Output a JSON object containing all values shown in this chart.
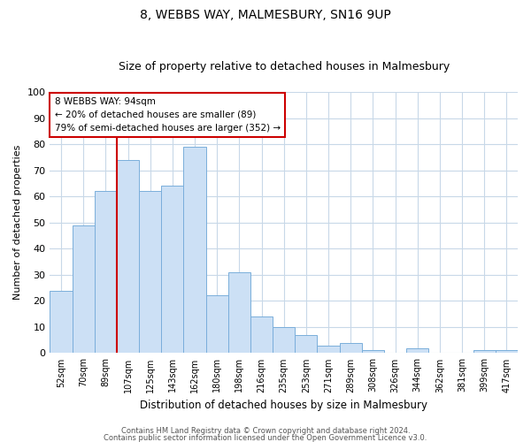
{
  "title": "8, WEBBS WAY, MALMESBURY, SN16 9UP",
  "subtitle": "Size of property relative to detached houses in Malmesbury",
  "xlabel": "Distribution of detached houses by size in Malmesbury",
  "ylabel": "Number of detached properties",
  "categories": [
    "52sqm",
    "70sqm",
    "89sqm",
    "107sqm",
    "125sqm",
    "143sqm",
    "162sqm",
    "180sqm",
    "198sqm",
    "216sqm",
    "235sqm",
    "253sqm",
    "271sqm",
    "289sqm",
    "308sqm",
    "326sqm",
    "344sqm",
    "362sqm",
    "381sqm",
    "399sqm",
    "417sqm"
  ],
  "values": [
    24,
    49,
    62,
    74,
    62,
    64,
    79,
    22,
    31,
    14,
    10,
    7,
    3,
    4,
    1,
    0,
    2,
    0,
    0,
    1,
    1
  ],
  "bar_color": "#cce0f5",
  "bar_edge_color": "#7aaedb",
  "red_line_x": 2,
  "red_line_color": "#cc0000",
  "annotation_line1": "8 WEBBS WAY: 94sqm",
  "annotation_line2": "← 20% of detached houses are smaller (89)",
  "annotation_line3": "79% of semi-detached houses are larger (352) →",
  "annotation_box_color": "#ffffff",
  "annotation_box_edge_color": "#cc0000",
  "ylim": [
    0,
    100
  ],
  "footnote1": "Contains HM Land Registry data © Crown copyright and database right 2024.",
  "footnote2": "Contains public sector information licensed under the Open Government Licence v3.0.",
  "background_color": "#ffffff",
  "grid_color": "#c8d8e8",
  "title_fontsize": 10,
  "subtitle_fontsize": 9
}
